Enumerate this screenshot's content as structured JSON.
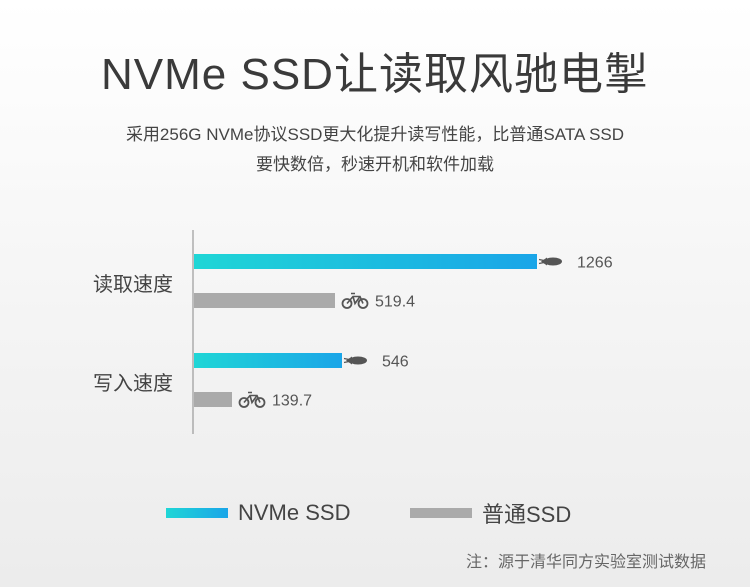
{
  "title": "NVMe SSD让读取风驰电掣",
  "subtitle_line1": "采用256G NVMe协议SSD更大化提升读写性能，比普通SATA SSD",
  "subtitle_line2": "要快数倍，秒速开机和软件加载",
  "source": "注：源于清华同方实验室测试数据",
  "chart_data": {
    "type": "bar",
    "orientation": "horizontal",
    "categories": [
      "读取速度",
      "写入速度"
    ],
    "series": [
      {
        "name": "NVMe SSD",
        "values": [
          1266,
          546
        ],
        "value_labels": [
          "1266",
          "546"
        ],
        "color": "#1fd6d6",
        "color_end": "#1aa5e8",
        "icon": "rocket-icon"
      },
      {
        "name": "普通SSD",
        "values": [
          519.4,
          139.7
        ],
        "value_labels": [
          "519.4",
          "139.7"
        ],
        "color": "#aaaaaa",
        "icon": "bicycle-icon"
      }
    ],
    "xlim": [
      0,
      1266
    ],
    "grid": false,
    "legend_position": "bottom"
  }
}
